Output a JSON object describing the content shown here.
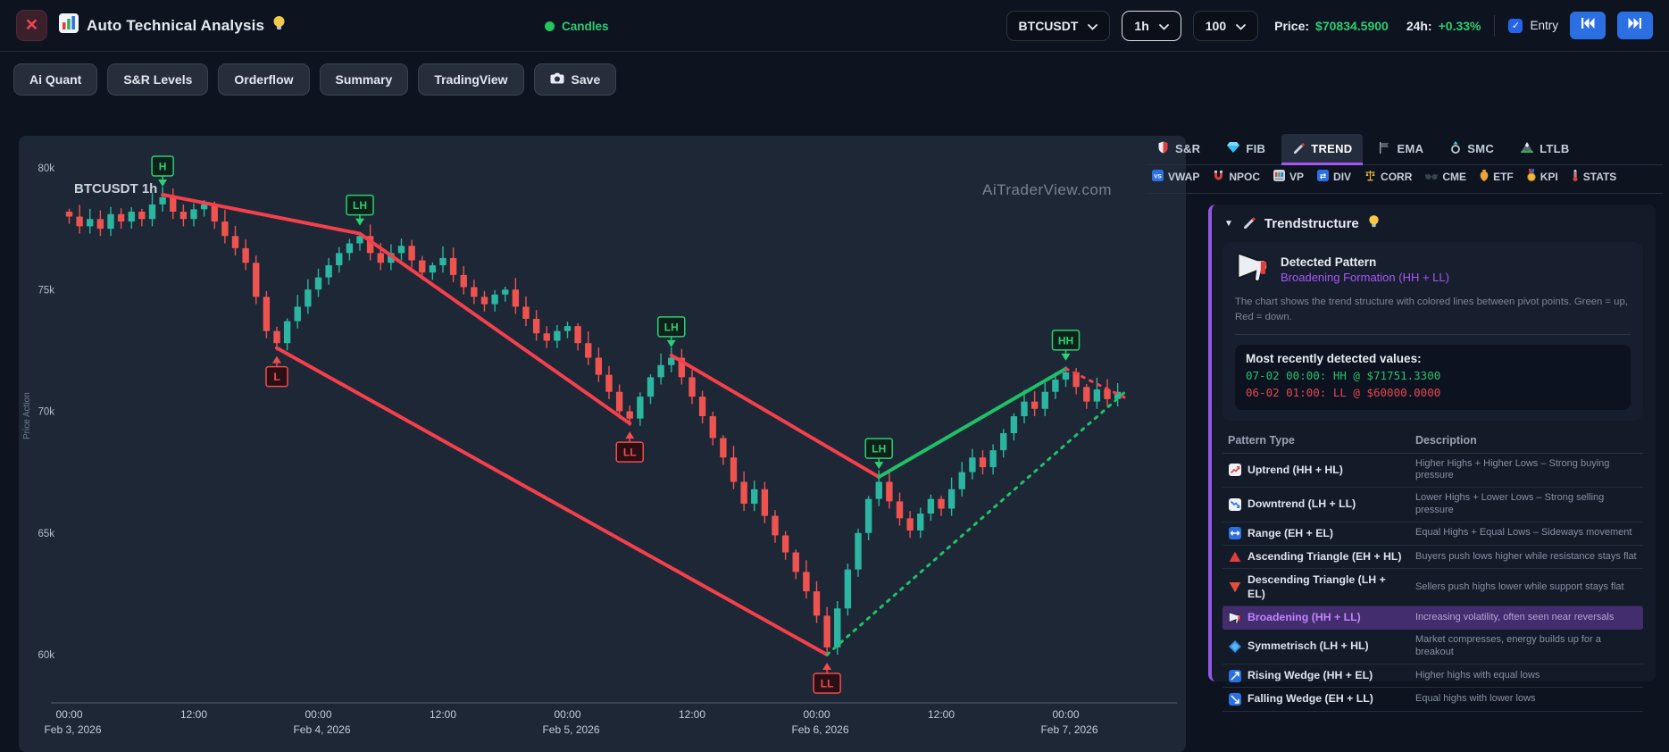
{
  "topbar": {
    "title": "Auto Technical Analysis",
    "candles_label": "Candles",
    "symbol": "BTCUSDT",
    "interval": "1h",
    "candle_count": "100",
    "price_label": "Price:",
    "price_value": "$70834.5900",
    "change_label": "24h:",
    "change_value": "+0.33%",
    "entry_label": "Entry"
  },
  "toolbar": {
    "buttons": [
      "Ai Quant",
      "S&R Levels",
      "Orderflow",
      "Summary",
      "TradingView"
    ],
    "save_label": "Save"
  },
  "chart": {
    "symbol_label": "BTCUSDT 1h",
    "watermark": "AiTraderView.com",
    "y_axis_title": "Price Action"
  },
  "chart_data": {
    "type": "candlestick",
    "symbol": "BTCUSDT",
    "interval": "1h",
    "unit": "thousand USD",
    "y_ticks": [
      {
        "label": "80k",
        "value": 80
      },
      {
        "label": "75k",
        "value": 75
      },
      {
        "label": "70k",
        "value": 70
      },
      {
        "label": "65k",
        "value": 65
      },
      {
        "label": "60k",
        "value": 60
      }
    ],
    "x_ticks": [
      {
        "i": 0,
        "time": "00:00",
        "date": "Feb 3, 2026"
      },
      {
        "i": 12,
        "time": "12:00",
        "date": ""
      },
      {
        "i": 24,
        "time": "00:00",
        "date": "Feb 4, 2026"
      },
      {
        "i": 36,
        "time": "12:00",
        "date": ""
      },
      {
        "i": 48,
        "time": "00:00",
        "date": "Feb 5, 2026"
      },
      {
        "i": 60,
        "time": "12:00",
        "date": ""
      },
      {
        "i": 72,
        "time": "00:00",
        "date": "Feb 6, 2026"
      },
      {
        "i": 84,
        "time": "12:00",
        "date": ""
      },
      {
        "i": 96,
        "time": "00:00",
        "date": "Feb 7, 2026"
      }
    ],
    "closes_k": [
      78.0,
      77.6,
      77.9,
      77.5,
      78.1,
      77.8,
      78.2,
      77.9,
      78.5,
      78.8,
      78.2,
      77.9,
      78.3,
      78.5,
      77.8,
      77.2,
      76.7,
      76.1,
      74.7,
      73.3,
      72.8,
      73.7,
      74.3,
      75.0,
      75.5,
      76.0,
      76.5,
      76.9,
      77.2,
      76.5,
      76.1,
      76.5,
      76.8,
      76.2,
      75.7,
      76.0,
      76.3,
      75.6,
      75.1,
      74.7,
      74.4,
      74.8,
      75.0,
      74.3,
      73.8,
      73.2,
      72.9,
      73.3,
      73.5,
      72.8,
      72.2,
      71.5,
      70.8,
      70.0,
      69.7,
      70.6,
      71.4,
      71.9,
      72.2,
      71.4,
      70.6,
      69.8,
      68.9,
      68.1,
      67.1,
      66.2,
      66.8,
      65.7,
      64.9,
      64.2,
      63.4,
      62.6,
      61.6,
      60.3,
      61.9,
      63.5,
      65.0,
      66.4,
      67.1,
      66.3,
      65.6,
      65.1,
      65.8,
      66.4,
      66.0,
      66.8,
      67.5,
      68.1,
      67.7,
      68.4,
      69.1,
      69.8,
      70.4,
      70.1,
      70.8,
      71.3,
      71.6,
      71.0,
      70.4,
      70.9,
      70.5,
      70.8
    ],
    "pivots": [
      {
        "label": "H",
        "index": 9,
        "price_k": 78.9,
        "type": "high"
      },
      {
        "label": "L",
        "index": 20,
        "price_k": 72.6,
        "type": "low"
      },
      {
        "label": "LH",
        "index": 28,
        "price_k": 77.3,
        "type": "high"
      },
      {
        "label": "LL",
        "index": 54,
        "price_k": 69.5,
        "type": "low"
      },
      {
        "label": "LH",
        "index": 58,
        "price_k": 72.3,
        "type": "high"
      },
      {
        "label": "LL",
        "index": 73,
        "price_k": 60.0,
        "type": "low"
      },
      {
        "label": "LH",
        "index": 78,
        "price_k": 67.3,
        "type": "high"
      },
      {
        "label": "HH",
        "index": 96,
        "price_k": 71.75,
        "type": "high"
      }
    ],
    "trendlines": [
      {
        "points": [
          [
            9,
            78.9
          ],
          [
            28,
            77.3
          ],
          [
            54,
            69.5
          ]
        ],
        "color": "red",
        "style": "solid"
      },
      {
        "points": [
          [
            20,
            72.6
          ],
          [
            73,
            60.0
          ]
        ],
        "color": "red",
        "style": "solid"
      },
      {
        "points": [
          [
            58,
            72.3
          ],
          [
            78,
            67.3
          ]
        ],
        "color": "red",
        "style": "solid"
      },
      {
        "points": [
          [
            78,
            67.3
          ],
          [
            96,
            71.75
          ]
        ],
        "color": "green",
        "style": "solid"
      },
      {
        "points": [
          [
            73,
            60.0
          ],
          [
            102,
            70.9
          ]
        ],
        "color": "green",
        "style": "dashed"
      },
      {
        "points": [
          [
            96,
            71.75
          ],
          [
            102,
            70.5
          ]
        ],
        "color": "red",
        "style": "dashed"
      }
    ]
  },
  "panel_tabs": {
    "row1": [
      {
        "label": "S&R",
        "icon": "shield-icon",
        "active": false
      },
      {
        "label": "FIB",
        "icon": "gem-icon",
        "active": false
      },
      {
        "label": "TREND",
        "icon": "pen-icon",
        "active": true
      },
      {
        "label": "EMA",
        "icon": "flag-icon",
        "active": false
      },
      {
        "label": "SMC",
        "icon": "ring-icon",
        "active": false
      },
      {
        "label": "LTLB",
        "icon": "mountain-icon",
        "active": false
      }
    ],
    "row2": [
      {
        "label": "VWAP",
        "icon": "vs-icon"
      },
      {
        "label": "NPOC",
        "icon": "magnet-icon"
      },
      {
        "label": "VP",
        "icon": "slot-icon"
      },
      {
        "label": "DIV",
        "icon": "shuffle-icon"
      },
      {
        "label": "CORR",
        "icon": "scales-icon"
      },
      {
        "label": "CME",
        "icon": "glasses-icon"
      },
      {
        "label": "ETF",
        "icon": "amphora-icon"
      },
      {
        "label": "KPI",
        "icon": "medal-icon"
      },
      {
        "label": "STATS",
        "icon": "thermometer-icon"
      }
    ]
  },
  "trend_panel": {
    "title": "Trendstructure",
    "detected_heading": "Detected Pattern",
    "detected_pattern": "Broadening Formation (HH + LL)",
    "description": "The chart shows the trend structure with colored lines between pivot points. Green = up, Red = down.",
    "recent_heading": "Most recently detected values:",
    "recent_values": [
      {
        "text": "07-02 00:00: HH @ $71751.3300",
        "tone": "green"
      },
      {
        "text": "06-02 01:00: LL @ $60000.0000",
        "tone": "red"
      }
    ],
    "table": {
      "col1": "Pattern Type",
      "col2": "Description",
      "rows": [
        {
          "icon": "uptrend-icon",
          "name": "Uptrend (HH + HL)",
          "desc": "Higher Highs + Higher Lows – Strong buying pressure",
          "highlight": false
        },
        {
          "icon": "downtrend-icon",
          "name": "Downtrend (LH + LL)",
          "desc": "Lower Highs + Lower Lows – Strong selling pressure",
          "highlight": false
        },
        {
          "icon": "range-icon",
          "name": "Range (EH + EL)",
          "desc": "Equal Highs + Equal Lows – Sideways movement",
          "highlight": false
        },
        {
          "icon": "asc-triangle-icon",
          "name": "Ascending Triangle (EH + HL)",
          "desc": "Buyers push lows higher while resistance stays flat",
          "highlight": false
        },
        {
          "icon": "desc-triangle-icon",
          "name": "Descending Triangle (LH + EL)",
          "desc": "Sellers push highs lower while support stays flat",
          "highlight": false
        },
        {
          "icon": "megaphone-icon",
          "name": "Broadening (HH + LL)",
          "desc": "Increasing volatility, often seen near reversals",
          "highlight": true
        },
        {
          "icon": "symmetry-icon",
          "name": "Symmetrisch (LH + HL)",
          "desc": "Market compresses, energy builds up for a breakout",
          "highlight": false
        },
        {
          "icon": "rising-wedge-icon",
          "name": "Rising Wedge (HH + EL)",
          "desc": "Higher highs with equal lows",
          "highlight": false
        },
        {
          "icon": "falling-wedge-icon",
          "name": "Falling Wedge (EH + LL)",
          "desc": "Equal highs with lower lows",
          "highlight": false
        }
      ]
    }
  },
  "colors": {
    "candle_up": "#2cb5a0",
    "candle_down": "#ef5350",
    "trend_red": "#f5404c",
    "trend_green": "#1ec168",
    "pivot_green": "#2bd074",
    "pivot_red": "#f14b50",
    "accent_purple": "#a855f7",
    "price_green": "#2ecc71",
    "button_blue": "#2b6fe3"
  }
}
